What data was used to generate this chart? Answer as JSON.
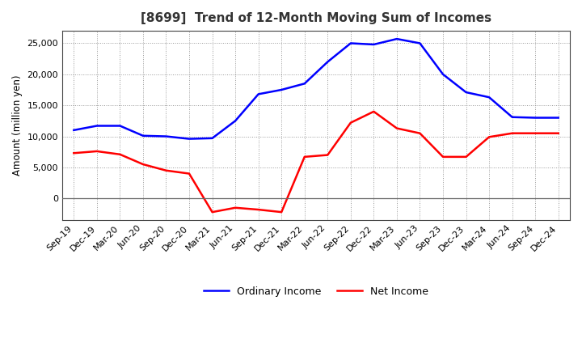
{
  "title": "[8699]  Trend of 12-Month Moving Sum of Incomes",
  "ylabel": "Amount (million yen)",
  "background_color": "#ffffff",
  "plot_background": "#ffffff",
  "grid_color": "#999999",
  "x_labels": [
    "Sep-19",
    "Dec-19",
    "Mar-20",
    "Jun-20",
    "Sep-20",
    "Dec-20",
    "Mar-21",
    "Jun-21",
    "Sep-21",
    "Dec-21",
    "Mar-22",
    "Jun-22",
    "Sep-22",
    "Dec-22",
    "Mar-23",
    "Jun-23",
    "Sep-23",
    "Dec-23",
    "Mar-24",
    "Jun-24",
    "Sep-24",
    "Dec-24"
  ],
  "ordinary_income": [
    11000,
    11700,
    11700,
    10100,
    10000,
    9600,
    9700,
    12500,
    16800,
    17500,
    18500,
    22000,
    25000,
    24800,
    25700,
    25000,
    20000,
    17100,
    16300,
    13100,
    13000,
    13000
  ],
  "net_income": [
    7300,
    7600,
    7100,
    5500,
    4500,
    4000,
    -2200,
    -1500,
    -1800,
    -2200,
    6700,
    7000,
    12200,
    14000,
    11300,
    10500,
    6700,
    6700,
    9900,
    10500,
    10500,
    10500
  ],
  "ordinary_color": "#0000ff",
  "net_color": "#ff0000",
  "ylim": [
    -3500,
    27000
  ],
  "yticks": [
    0,
    5000,
    10000,
    15000,
    20000,
    25000
  ],
  "line_width": 1.8,
  "title_fontsize": 11,
  "title_color": "#333333",
  "legend_labels": [
    "Ordinary Income",
    "Net Income"
  ],
  "tick_fontsize": 8,
  "ylabel_fontsize": 8.5
}
